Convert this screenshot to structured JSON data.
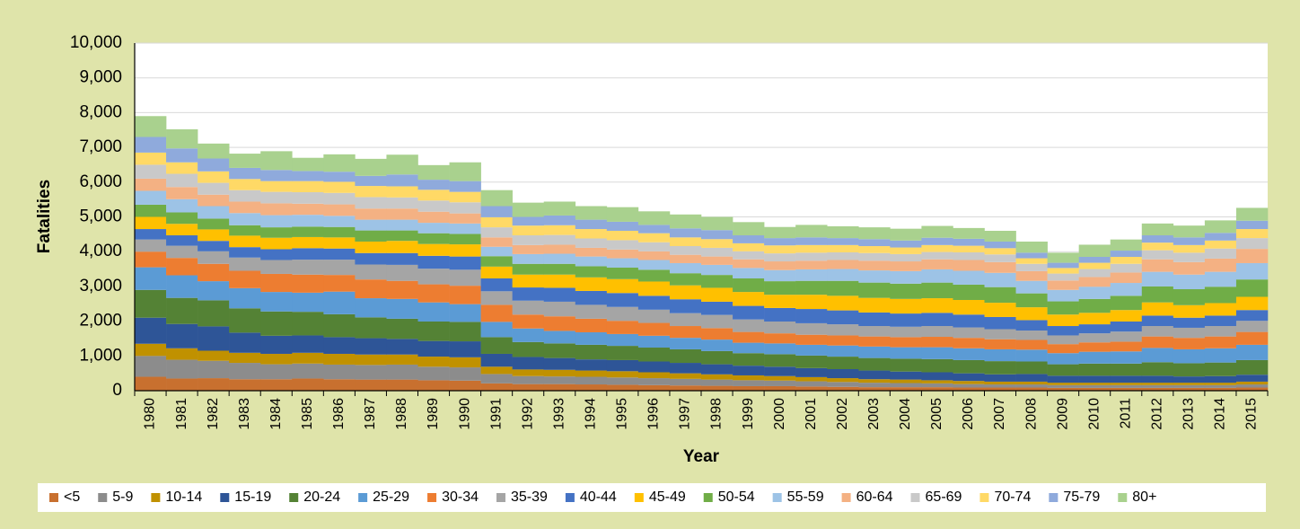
{
  "chart_data": {
    "type": "stacked_bar",
    "x_label": "Year",
    "y_label": "Fatalities",
    "categories": [
      "1980",
      "1981",
      "1982",
      "1983",
      "1984",
      "1985",
      "1986",
      "1987",
      "1988",
      "1989",
      "1990",
      "1991",
      "1992",
      "1993",
      "1994",
      "1995",
      "1996",
      "1997",
      "1998",
      "1999",
      "2000",
      "2001",
      "2002",
      "2003",
      "2004",
      "2005",
      "2006",
      "2007",
      "2008",
      "2009",
      "2010",
      "2011",
      "2012",
      "2013",
      "2014",
      "2015"
    ],
    "ylim": [
      0,
      10000
    ],
    "yticks": [
      0,
      {
        "value": 1000,
        "label": "1,000"
      },
      {
        "value": 2000,
        "label": "2,000"
      },
      {
        "value": 3000,
        "label": "3,000"
      },
      {
        "value": 4000,
        "label": "4,000"
      },
      {
        "value": 5000,
        "label": "5,000"
      },
      {
        "value": 6000,
        "label": "6,000"
      },
      {
        "value": 7000,
        "label": "7,000"
      },
      {
        "value": 8000,
        "label": "8,000"
      },
      {
        "value": 9000,
        "label": "9,000"
      },
      {
        "value": 10000,
        "label": "10,000"
      }
    ],
    "grid": true,
    "legend": "bottom",
    "series": [
      {
        "name": "<5",
        "color": "#c8702f",
        "values": [
          400,
          350,
          360,
          330,
          330,
          350,
          330,
          320,
          320,
          300,
          290,
          210,
          190,
          190,
          180,
          170,
          160,
          150,
          140,
          130,
          130,
          120,
          110,
          100,
          100,
          100,
          90,
          90,
          90,
          80,
          80,
          80,
          80,
          80,
          80,
          90
        ]
      },
      {
        "name": "5-9",
        "color": "#8c8c8c",
        "values": [
          600,
          540,
          500,
          470,
          430,
          430,
          420,
          420,
          430,
          390,
          380,
          270,
          230,
          220,
          220,
          210,
          200,
          190,
          180,
          170,
          160,
          150,
          140,
          130,
          120,
          110,
          100,
          90,
          90,
          80,
          80,
          80,
          80,
          80,
          80,
          90
        ]
      },
      {
        "name": "10-14",
        "color": "#c09100",
        "values": [
          350,
          330,
          290,
          290,
          300,
          310,
          310,
          300,
          290,
          290,
          290,
          210,
          190,
          190,
          180,
          180,
          170,
          160,
          150,
          140,
          130,
          120,
          110,
          100,
          100,
          90,
          90,
          80,
          80,
          70,
          70,
          70,
          70,
          70,
          70,
          80
        ]
      },
      {
        "name": "15-19",
        "color": "#2e5597",
        "values": [
          750,
          700,
          700,
          580,
          520,
          500,
          480,
          470,
          450,
          450,
          460,
          370,
          360,
          340,
          320,
          320,
          310,
          300,
          290,
          280,
          270,
          260,
          260,
          250,
          230,
          230,
          220,
          210,
          220,
          200,
          200,
          200,
          200,
          180,
          190,
          200
        ]
      },
      {
        "name": "20-24",
        "color": "#548235",
        "values": [
          800,
          750,
          750,
          700,
          700,
          680,
          660,
          600,
          580,
          560,
          560,
          480,
          430,
          420,
          420,
          410,
          400,
          390,
          380,
          360,
          360,
          360,
          360,
          360,
          370,
          380,
          380,
          380,
          360,
          330,
          350,
          350,
          390,
          380,
          390,
          420
        ]
      },
      {
        "name": "25-29",
        "color": "#5b9bd5",
        "values": [
          650,
          650,
          550,
          580,
          560,
          550,
          650,
          550,
          570,
          550,
          510,
          440,
          390,
          360,
          360,
          340,
          340,
          330,
          330,
          300,
          310,
          310,
          320,
          330,
          330,
          340,
          340,
          340,
          340,
          320,
          340,
          350,
          410,
          400,
          410,
          440
        ]
      },
      {
        "name": "30-34",
        "color": "#ed7d31",
        "values": [
          450,
          500,
          500,
          500,
          520,
          520,
          480,
          540,
          520,
          520,
          530,
          490,
          400,
          420,
          390,
          380,
          370,
          340,
          330,
          310,
          290,
          290,
          290,
          290,
          290,
          300,
          300,
          290,
          280,
          260,
          270,
          280,
          330,
          330,
          340,
          370
        ]
      },
      {
        "name": "35-39",
        "color": "#a5a5a5",
        "values": [
          350,
          350,
          360,
          380,
          400,
          430,
          440,
          430,
          460,
          450,
          460,
          390,
          400,
          420,
          400,
          400,
          380,
          370,
          380,
          360,
          340,
          330,
          320,
          300,
          300,
          310,
          300,
          290,
          270,
          250,
          260,
          290,
          300,
          290,
          300,
          320
        ]
      },
      {
        "name": "40-44",
        "color": "#4472c4",
        "values": [
          300,
          300,
          300,
          300,
          310,
          330,
          320,
          330,
          340,
          370,
          380,
          370,
          380,
          400,
          400,
          400,
          400,
          400,
          380,
          390,
          390,
          410,
          400,
          390,
          380,
          380,
          370,
          350,
          300,
          270,
          260,
          290,
          300,
          290,
          300,
          310
        ]
      },
      {
        "name": "45-49",
        "color": "#ffc000",
        "values": [
          350,
          330,
          330,
          330,
          330,
          320,
          320,
          330,
          350,
          340,
          350,
          340,
          370,
          380,
          390,
          400,
          410,
          400,
          400,
          400,
          380,
          410,
          420,
          420,
          420,
          420,
          420,
          410,
          370,
          330,
          330,
          330,
          380,
          360,
          360,
          380
        ]
      },
      {
        "name": "50-54",
        "color": "#70ad47",
        "values": [
          350,
          330,
          310,
          300,
          300,
          300,
          300,
          320,
          300,
          310,
          300,
          300,
          310,
          310,
          320,
          330,
          340,
          350,
          370,
          390,
          390,
          400,
          430,
          440,
          440,
          450,
          440,
          450,
          400,
          380,
          400,
          410,
          460,
          460,
          470,
          500
        ]
      },
      {
        "name": "55-59",
        "color": "#9dc3e6",
        "values": [
          400,
          380,
          360,
          350,
          350,
          340,
          320,
          310,
          310,
          300,
          300,
          270,
          280,
          290,
          280,
          270,
          280,
          290,
          290,
          300,
          320,
          330,
          340,
          350,
          360,
          380,
          400,
          410,
          360,
          330,
          350,
          370,
          420,
          420,
          430,
          470
        ]
      },
      {
        "name": "60-64",
        "color": "#f4b183",
        "values": [
          350,
          350,
          330,
          330,
          340,
          320,
          330,
          320,
          320,
          320,
          290,
          270,
          260,
          260,
          250,
          250,
          250,
          240,
          240,
          250,
          250,
          250,
          260,
          280,
          280,
          290,
          310,
          310,
          280,
          270,
          280,
          300,
          360,
          360,
          380,
          410
        ]
      },
      {
        "name": "65-69",
        "color": "#c9c9c9",
        "values": [
          400,
          380,
          340,
          330,
          330,
          330,
          330,
          330,
          320,
          320,
          320,
          290,
          280,
          280,
          270,
          270,
          260,
          250,
          250,
          230,
          230,
          230,
          220,
          220,
          210,
          210,
          220,
          220,
          210,
          200,
          230,
          250,
          260,
          270,
          290,
          310
        ]
      },
      {
        "name": "70-74",
        "color": "#ffd966",
        "values": [
          350,
          330,
          330,
          320,
          310,
          320,
          320,
          320,
          320,
          310,
          300,
          290,
          280,
          280,
          270,
          270,
          260,
          250,
          250,
          230,
          230,
          220,
          210,
          200,
          190,
          200,
          190,
          180,
          160,
          160,
          180,
          200,
          220,
          220,
          230,
          260
        ]
      },
      {
        "name": "75-79",
        "color": "#8faadc",
        "values": [
          450,
          400,
          370,
          320,
          320,
          290,
          290,
          290,
          340,
          290,
          310,
          320,
          250,
          280,
          270,
          260,
          240,
          260,
          260,
          230,
          210,
          220,
          200,
          200,
          200,
          210,
          200,
          190,
          160,
          150,
          170,
          180,
          210,
          220,
          220,
          240
        ]
      },
      {
        "name": "80+",
        "color": "#a9d18e",
        "values": [
          600,
          550,
          430,
          410,
          540,
          380,
          500,
          490,
          570,
          420,
          540,
          460,
          410,
          400,
          390,
          420,
          390,
          400,
          380,
          380,
          320,
          360,
          340,
          340,
          340,
          340,
          310,
          310,
          320,
          290,
          350,
          320,
          340,
          340,
          360,
          370
        ]
      }
    ]
  }
}
